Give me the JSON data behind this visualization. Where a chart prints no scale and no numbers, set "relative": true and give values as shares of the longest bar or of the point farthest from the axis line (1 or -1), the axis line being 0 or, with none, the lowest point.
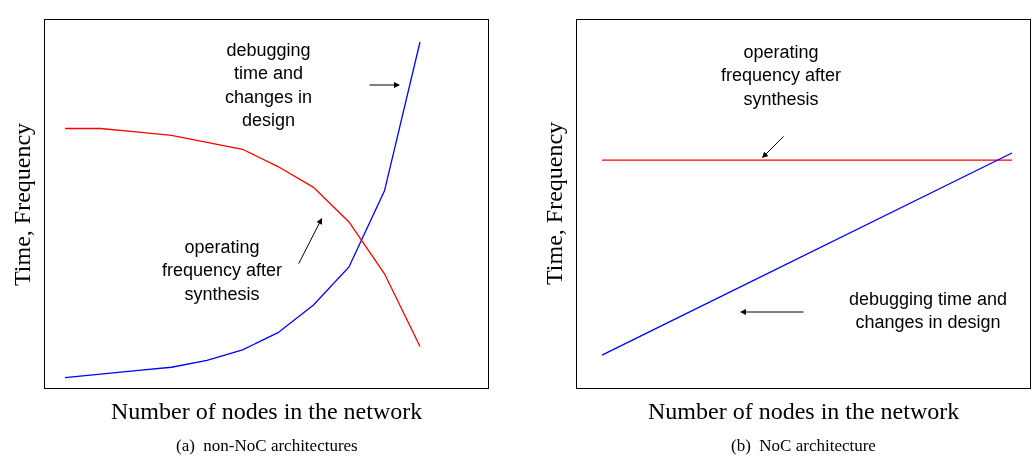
{
  "chart_data": [
    {
      "type": "line",
      "title": "(a)  non-NoC architectures",
      "xlabel": "Number of nodes in the network",
      "ylabel": "Time, Frequency",
      "relative": true,
      "categories": [
        null,
        null,
        null,
        null,
        null,
        null,
        null,
        null,
        null,
        null,
        null
      ],
      "series": [
        {
          "color": "#0000ff",
          "values": [
            0.03,
            0.04,
            0.05,
            0.06,
            0.08,
            0.11,
            0.16,
            0.24,
            0.35,
            0.57,
            1
          ]
        },
        {
          "color": "#ff0000",
          "values": [
            0.75,
            0.75,
            0.74,
            0.73,
            0.71,
            0.69,
            0.64,
            0.58,
            0.48,
            0.33,
            0.12
          ]
        }
      ],
      "annotations": [
        "debugging\ntime and\nchanges in\ndesign",
        "operating\nfrequency after\nsynthesis"
      ],
      "marker": "none",
      "line_style": "solid"
    },
    {
      "type": "line",
      "title": "(b)  NoC architecture",
      "xlabel": "Number of nodes in the network",
      "ylabel": "Time, Frequency",
      "relative": true,
      "categories": [
        null,
        null
      ],
      "series": [
        {
          "color": "#ff0000",
          "values": [
            0.97,
            0.97
          ]
        },
        {
          "color": "#0000ff",
          "values": [
            0.14,
            1
          ]
        }
      ],
      "annotations": [
        "operating\nfrequency after\nsynthesis",
        "debugging time and\nchanges in design"
      ],
      "marker": "none",
      "line_style": "solid"
    }
  ]
}
